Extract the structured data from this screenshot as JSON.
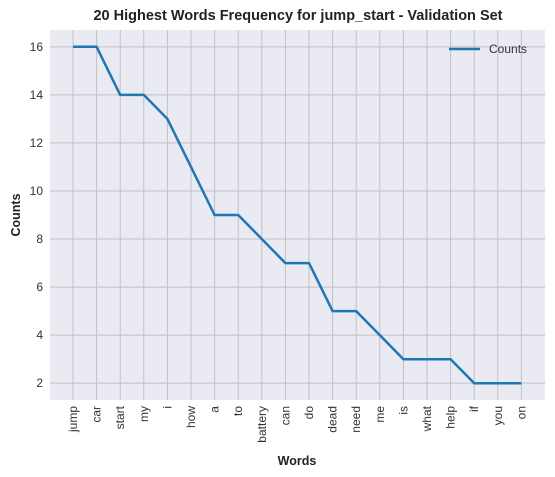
{
  "chart_data": {
    "type": "line",
    "title": "20 Highest Words Frequency for jump_start - Validation Set",
    "xlabel": "Words",
    "ylabel": "Counts",
    "categories": [
      "jump",
      "car",
      "start",
      "my",
      "i",
      "how",
      "a",
      "to",
      "battery",
      "can",
      "do",
      "dead",
      "need",
      "me",
      "is",
      "what",
      "help",
      "if",
      "you",
      "on"
    ],
    "series": [
      {
        "name": "Counts",
        "values": [
          16,
          16,
          14,
          14,
          13,
          11,
          9,
          9,
          8,
          7,
          7,
          5,
          5,
          4,
          3,
          3,
          3,
          2,
          2,
          2
        ]
      }
    ],
    "ylim": [
      1.3,
      16.7
    ],
    "yticks": [
      2,
      4,
      6,
      8,
      10,
      12,
      14,
      16
    ],
    "grid": true,
    "legend_position": "top-right",
    "colors": {
      "line": "#1f77b4",
      "plot_bg": "#eaeaf2",
      "grid": "#c0c0c4"
    }
  }
}
